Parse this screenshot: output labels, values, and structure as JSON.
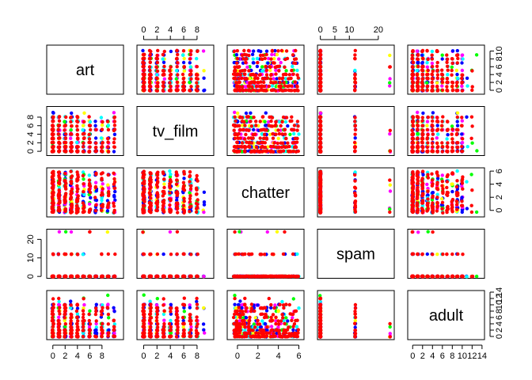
{
  "chart_data": {
    "type": "scatter",
    "variables": [
      "art",
      "tv_film",
      "chatter",
      "spam",
      "adult"
    ],
    "axes": {
      "art": {
        "lim": [
          -1,
          11.5
        ],
        "ticks": [
          0,
          2,
          4,
          6,
          8,
          10
        ],
        "ticks_bottom": [
          0,
          2,
          4,
          6,
          8
        ]
      },
      "tv_film": {
        "lim": [
          -1,
          10.5
        ],
        "ticks": [
          0,
          2,
          4,
          6,
          8
        ]
      },
      "chatter": {
        "lim": [
          -1,
          6.5
        ],
        "ticks": [
          0,
          2,
          4,
          6
        ]
      },
      "spam": {
        "lim": [
          -1,
          25.5
        ],
        "ticks": [
          0,
          10,
          20
        ],
        "ticks_top": [
          0,
          5,
          10,
          20
        ]
      },
      "adult": {
        "lim": [
          -1,
          14.5
        ],
        "ticks": [
          0,
          2,
          4,
          6,
          8,
          10,
          12,
          14
        ],
        "ticks_right": [
          0,
          2,
          4,
          6,
          8,
          10,
          12,
          14
        ]
      }
    },
    "tick_sides": {
      "top": [
        "tv_film",
        "spam"
      ],
      "bottom": [
        "art",
        "tv_film",
        "chatter",
        "adult"
      ],
      "left": [
        "tv_film",
        "spam"
      ],
      "right": [
        "art",
        "chatter",
        "adult"
      ]
    },
    "point_colors": [
      "#ff0000",
      "#0000ff",
      "#00ff00",
      "#ff00ff",
      "#00ffff",
      "#ffff00"
    ],
    "point_weights": [
      0.5,
      0.17,
      0.09,
      0.1,
      0.07,
      0.07
    ],
    "legend": "none",
    "grid": false
  }
}
